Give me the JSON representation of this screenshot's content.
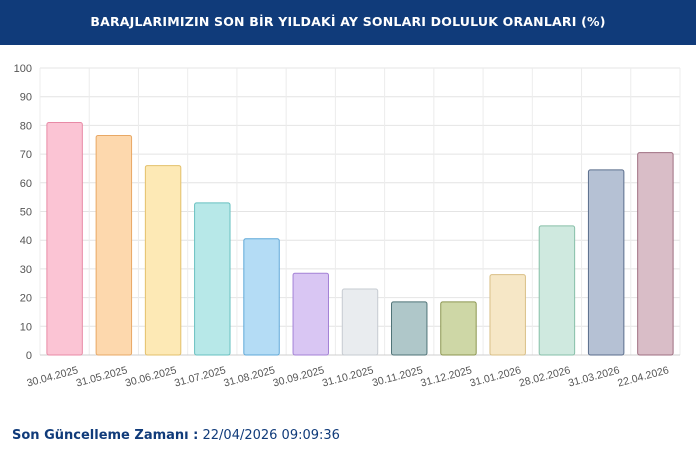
{
  "header": {
    "title": "BARAJLARIMIZIN SON BİR YILDAKİ AY SONLARI DOLULUK ORANLARI (%)"
  },
  "footer": {
    "label": "Son Güncelleme Zamanı :",
    "value": "22/04/2026 09:09:36"
  },
  "chart_data": {
    "type": "bar",
    "title": "BARAJLARIMIZIN SON BİR YILDAKİ AY SONLARI DOLULUK ORANLARI (%)",
    "xlabel": "",
    "ylabel": "",
    "ylim": [
      0,
      100
    ],
    "yticks": [
      0,
      10,
      20,
      30,
      40,
      50,
      60,
      70,
      80,
      90,
      100
    ],
    "grid": true,
    "legend": "none",
    "categories": [
      "30.04.2025",
      "31.05.2025",
      "30.06.2025",
      "31.07.2025",
      "31.08.2025",
      "30.09.2025",
      "31.10.2025",
      "30.11.2025",
      "31.12.2025",
      "31.01.2026",
      "28.02.2026",
      "31.03.2026",
      "22.04.2026"
    ],
    "values": [
      81,
      76.5,
      66,
      53,
      40.5,
      28.5,
      23,
      18.5,
      18.5,
      28,
      45,
      64.5,
      70.5
    ],
    "colors": [
      {
        "fill": "#fbc4d4",
        "stroke": "#e88aa6"
      },
      {
        "fill": "#fdd8ad",
        "stroke": "#e8a865"
      },
      {
        "fill": "#fde9b5",
        "stroke": "#e3c06a"
      },
      {
        "fill": "#b7e8e8",
        "stroke": "#67c0c0"
      },
      {
        "fill": "#b4dcf5",
        "stroke": "#5fa8d8"
      },
      {
        "fill": "#d9c6f3",
        "stroke": "#a482d6"
      },
      {
        "fill": "#e9ecef",
        "stroke": "#c6cbd1"
      },
      {
        "fill": "#afc7c9",
        "stroke": "#4f7377"
      },
      {
        "fill": "#ced7a6",
        "stroke": "#8c9650"
      },
      {
        "fill": "#f6e7c6",
        "stroke": "#d9bf85"
      },
      {
        "fill": "#cfe9df",
        "stroke": "#86bfa8"
      },
      {
        "fill": "#b5c1d4",
        "stroke": "#5a6d8c"
      },
      {
        "fill": "#d9bdc7",
        "stroke": "#9e6e80"
      }
    ]
  }
}
